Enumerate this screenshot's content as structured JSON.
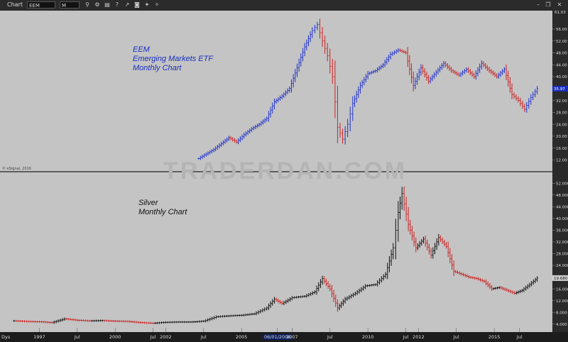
{
  "window": {
    "title": "Chart",
    "symbol": "EEM",
    "interval": "M",
    "close_icon": "✕"
  },
  "watermark": "TRADERDAN.COM",
  "credit": "© eSignal, 2016",
  "x_axis": {
    "corner_label": "Dys",
    "ticks": [
      {
        "label": "1997",
        "x": 1997.0
      },
      {
        "label": "Jul",
        "x": 1998.5
      },
      {
        "label": "2000",
        "x": 2000.0
      },
      {
        "label": "Jul",
        "x": 2001.5
      },
      {
        "label": "2002",
        "x": 2002.0
      },
      {
        "label": "Jul",
        "x": 2003.5
      },
      {
        "label": "2005",
        "x": 2005.0
      },
      {
        "label": "06/01/2006",
        "x": 2006.42,
        "highlight": true
      },
      {
        "label": "2007",
        "x": 2007.0
      },
      {
        "label": "Jul",
        "x": 2008.5
      },
      {
        "label": "2010",
        "x": 2010.0
      },
      {
        "label": "Jul",
        "x": 2011.5
      },
      {
        "label": "2012",
        "x": 2012.0
      },
      {
        "label": "Jul",
        "x": 2013.5
      },
      {
        "label": "2015",
        "x": 2015.0
      },
      {
        "label": "Jul",
        "x": 2016.0
      }
    ]
  },
  "chart_data": [
    {
      "type": "bar",
      "annotation": [
        "EEM",
        "Emerging Markets ETF",
        "Monthly Chart"
      ],
      "annotation_color": "#1a2fbf",
      "ylim": [
        9.0,
        61.0
      ],
      "y_ticks": [
        12,
        16,
        20,
        24,
        28,
        32,
        40,
        44,
        48,
        52,
        56
      ],
      "last_price": "35.97",
      "top_label": "61.03",
      "up_color": "#2233cc",
      "down_color": "#cc2222",
      "series": [
        {
          "x": 2003.3,
          "close": 12.5
        },
        {
          "x": 2003.6,
          "close": 14.0
        },
        {
          "x": 2003.9,
          "close": 15.5
        },
        {
          "x": 2004.2,
          "close": 17.5
        },
        {
          "x": 2004.5,
          "close": 19.5
        },
        {
          "x": 2004.8,
          "close": 18.0
        },
        {
          "x": 2005.1,
          "close": 20.5
        },
        {
          "x": 2005.4,
          "close": 22.5
        },
        {
          "x": 2005.7,
          "close": 24.0
        },
        {
          "x": 2006.0,
          "close": 26.0
        },
        {
          "x": 2006.3,
          "close": 31.5
        },
        {
          "x": 2006.6,
          "close": 33.5
        },
        {
          "x": 2006.9,
          "close": 36.0
        },
        {
          "x": 2007.2,
          "close": 43.0
        },
        {
          "x": 2007.5,
          "close": 50.0
        },
        {
          "x": 2007.8,
          "close": 55.5
        },
        {
          "x": 2008.0,
          "close": 57.5
        },
        {
          "x": 2008.2,
          "close": 52.0
        },
        {
          "x": 2008.4,
          "close": 47.0
        },
        {
          "x": 2008.6,
          "close": 40.0
        },
        {
          "x": 2008.8,
          "close": 23.0
        },
        {
          "x": 2009.0,
          "close": 19.0
        },
        {
          "x": 2009.2,
          "close": 24.0
        },
        {
          "x": 2009.4,
          "close": 31.0
        },
        {
          "x": 2009.7,
          "close": 37.0
        },
        {
          "x": 2010.0,
          "close": 41.0
        },
        {
          "x": 2010.3,
          "close": 42.0
        },
        {
          "x": 2010.6,
          "close": 44.0
        },
        {
          "x": 2010.9,
          "close": 47.5
        },
        {
          "x": 2011.2,
          "close": 49.0
        },
        {
          "x": 2011.5,
          "close": 48.0
        },
        {
          "x": 2011.8,
          "close": 37.0
        },
        {
          "x": 2012.1,
          "close": 43.0
        },
        {
          "x": 2012.4,
          "close": 38.5
        },
        {
          "x": 2012.7,
          "close": 41.5
        },
        {
          "x": 2013.0,
          "close": 44.5
        },
        {
          "x": 2013.3,
          "close": 42.0
        },
        {
          "x": 2013.6,
          "close": 40.5
        },
        {
          "x": 2013.9,
          "close": 42.5
        },
        {
          "x": 2014.2,
          "close": 40.0
        },
        {
          "x": 2014.5,
          "close": 44.5
        },
        {
          "x": 2014.8,
          "close": 42.0
        },
        {
          "x": 2015.1,
          "close": 40.0
        },
        {
          "x": 2015.4,
          "close": 42.5
        },
        {
          "x": 2015.7,
          "close": 34.0
        },
        {
          "x": 2015.95,
          "close": 32.0
        },
        {
          "x": 2016.2,
          "close": 29.0
        },
        {
          "x": 2016.45,
          "close": 33.0
        },
        {
          "x": 2016.7,
          "close": 35.97
        }
      ]
    },
    {
      "type": "bar",
      "annotation": [
        "Silver",
        "Monthly Chart"
      ],
      "annotation_color": "#111111",
      "ylim": [
        2.0,
        54.0
      ],
      "y_ticks": [
        4.0,
        8.0,
        12.0,
        16.0,
        24.0,
        28.0,
        32.0,
        36.0,
        40.0,
        44.0,
        48.0,
        52.0
      ],
      "last_price": "19.680",
      "up_color": "#111111",
      "down_color": "#cc2222",
      "series": [
        {
          "x": 1996.0,
          "close": 5.1
        },
        {
          "x": 1996.5,
          "close": 4.9
        },
        {
          "x": 1997.0,
          "close": 4.8
        },
        {
          "x": 1997.5,
          "close": 4.5
        },
        {
          "x": 1998.0,
          "close": 5.8
        },
        {
          "x": 1998.5,
          "close": 5.3
        },
        {
          "x": 1999.0,
          "close": 5.1
        },
        {
          "x": 1999.5,
          "close": 5.2
        },
        {
          "x": 2000.0,
          "close": 5.0
        },
        {
          "x": 2000.5,
          "close": 4.9
        },
        {
          "x": 2001.0,
          "close": 4.5
        },
        {
          "x": 2001.5,
          "close": 4.3
        },
        {
          "x": 2002.0,
          "close": 4.6
        },
        {
          "x": 2002.5,
          "close": 4.7
        },
        {
          "x": 2003.0,
          "close": 4.7
        },
        {
          "x": 2003.5,
          "close": 5.0
        },
        {
          "x": 2004.0,
          "close": 6.5
        },
        {
          "x": 2004.5,
          "close": 6.8
        },
        {
          "x": 2005.0,
          "close": 7.0
        },
        {
          "x": 2005.5,
          "close": 7.5
        },
        {
          "x": 2006.0,
          "close": 9.5
        },
        {
          "x": 2006.3,
          "close": 12.5
        },
        {
          "x": 2006.6,
          "close": 11.0
        },
        {
          "x": 2007.0,
          "close": 13.0
        },
        {
          "x": 2007.5,
          "close": 13.5
        },
        {
          "x": 2007.9,
          "close": 15.0
        },
        {
          "x": 2008.2,
          "close": 19.5
        },
        {
          "x": 2008.5,
          "close": 16.0
        },
        {
          "x": 2008.8,
          "close": 9.5
        },
        {
          "x": 2009.1,
          "close": 12.5
        },
        {
          "x": 2009.5,
          "close": 14.5
        },
        {
          "x": 2009.9,
          "close": 17.0
        },
        {
          "x": 2010.3,
          "close": 17.5
        },
        {
          "x": 2010.7,
          "close": 21.0
        },
        {
          "x": 2011.0,
          "close": 30.0
        },
        {
          "x": 2011.2,
          "close": 42.0
        },
        {
          "x": 2011.35,
          "close": 48.5
        },
        {
          "x": 2011.6,
          "close": 38.0
        },
        {
          "x": 2011.9,
          "close": 30.0
        },
        {
          "x": 2012.2,
          "close": 33.0
        },
        {
          "x": 2012.5,
          "close": 27.5
        },
        {
          "x": 2012.8,
          "close": 33.5
        },
        {
          "x": 2013.1,
          "close": 30.5
        },
        {
          "x": 2013.4,
          "close": 22.0
        },
        {
          "x": 2013.7,
          "close": 21.0
        },
        {
          "x": 2014.0,
          "close": 20.0
        },
        {
          "x": 2014.3,
          "close": 19.5
        },
        {
          "x": 2014.6,
          "close": 18.5
        },
        {
          "x": 2014.9,
          "close": 16.0
        },
        {
          "x": 2015.2,
          "close": 16.5
        },
        {
          "x": 2015.5,
          "close": 15.5
        },
        {
          "x": 2015.8,
          "close": 14.5
        },
        {
          "x": 2016.1,
          "close": 15.5
        },
        {
          "x": 2016.4,
          "close": 17.5
        },
        {
          "x": 2016.7,
          "close": 19.68
        }
      ]
    }
  ]
}
